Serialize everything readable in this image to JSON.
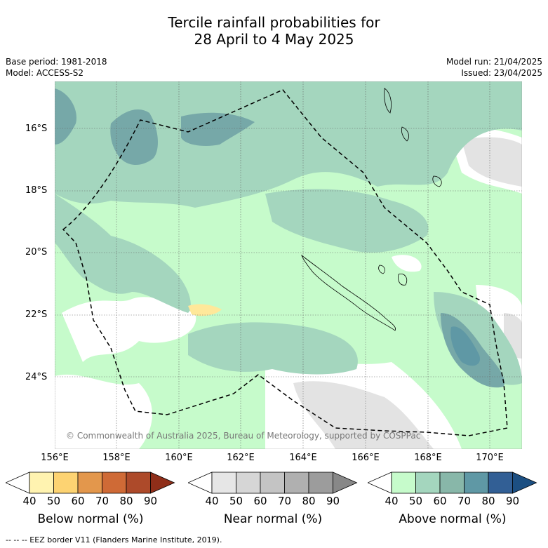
{
  "title_line1": "Tercile rainfall probabilities for",
  "title_line2": "28 April to 4 May 2025",
  "base_period": "Base period: 1981-2018",
  "model": "Model: ACCESS-S2",
  "model_run": "Model run: 21/04/2025",
  "issued": "Issued: 23/04/2025",
  "lat_labels": [
    "16°S",
    "18°S",
    "20°S",
    "22°S",
    "24°S"
  ],
  "lon_labels": [
    "156°E",
    "158°E",
    "160°E",
    "162°E",
    "164°E",
    "166°E",
    "168°E",
    "170°E"
  ],
  "copyright": "© Commonwealth of Australia 2025, Bureau of Meteorology, supported by COSPPac",
  "colorbars": [
    {
      "label": "Below normal (%)",
      "ticks": [
        "40",
        "50",
        "60",
        "70",
        "80",
        "90"
      ],
      "colors": [
        "#fff3b0",
        "#fdd372",
        "#e3974c",
        "#cf6a36",
        "#ad4a2a",
        "#8f2e19"
      ]
    },
    {
      "label": "Near normal (%)",
      "ticks": [
        "40",
        "50",
        "60",
        "70",
        "80",
        "90"
      ],
      "colors": [
        "#e6e6e6",
        "#d6d6d6",
        "#c4c4c4",
        "#b0b0b0",
        "#9c9c9c",
        "#888888"
      ]
    },
    {
      "label": "Above normal (%)",
      "ticks": [
        "40",
        "50",
        "60",
        "70",
        "80",
        "90"
      ],
      "colors": [
        "#c6fbcb",
        "#a4d6be",
        "#88b7a9",
        "#5f98a5",
        "#325f95",
        "#1c4f82"
      ]
    }
  ],
  "footnote": "--  --  -- EEZ border V11 (Flanders Marine Institute, 2019).",
  "colors": {
    "above_light": "#c6fbcb",
    "above_mid": "#a4d6be",
    "above_dark": "#76a8a8",
    "near_light": "#e3e3e3",
    "below_light": "#ffe89a"
  }
}
